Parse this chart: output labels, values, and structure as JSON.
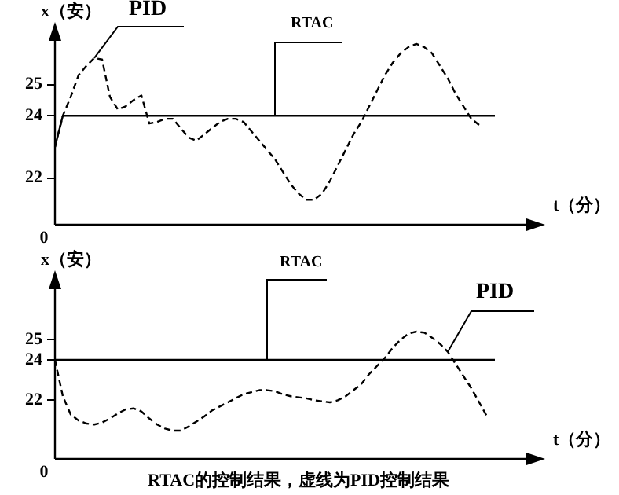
{
  "chart_data": [
    {
      "type": "line",
      "ylabel": "x（安）",
      "xlabel": "t（分）",
      "tick_labels": "y",
      "annotations": [
        "0"
      ],
      "categories": [
        null,
        null,
        null,
        null,
        null,
        null,
        null,
        null,
        null,
        null,
        null,
        null,
        null,
        null,
        null,
        null,
        null,
        null,
        null,
        null,
        null,
        null,
        null,
        null,
        null,
        null,
        null,
        null,
        null,
        null,
        null,
        null,
        null,
        null,
        null,
        null,
        null,
        null,
        null,
        null,
        null,
        null,
        null,
        null,
        null,
        null,
        null,
        null,
        null,
        null,
        null,
        null,
        null,
        null,
        null,
        null,
        null
      ],
      "ylim": [
        20.5,
        26.4
      ],
      "yticks": [
        22,
        24,
        25
      ],
      "series": [
        {
          "name": "PID",
          "color": "#000000",
          "line_style": "dashed",
          "values": [
            23.0,
            24.0,
            24.6,
            25.3,
            25.6,
            25.85,
            25.8,
            24.6,
            24.2,
            24.3,
            24.5,
            24.65,
            23.75,
            23.8,
            23.9,
            23.9,
            23.6,
            23.3,
            23.2,
            23.4,
            23.6,
            23.8,
            23.9,
            23.9,
            23.8,
            23.5,
            23.2,
            22.9,
            22.6,
            22.2,
            21.8,
            21.5,
            21.3,
            21.3,
            21.5,
            21.9,
            22.4,
            22.9,
            23.4,
            23.8,
            24.3,
            24.8,
            25.3,
            25.7,
            26.0,
            26.2,
            26.3,
            26.2,
            26.0,
            25.6,
            25.2,
            24.7,
            24.3,
            23.9,
            23.7,
            null,
            null
          ]
        },
        {
          "name": "RTAC",
          "color": "#000000",
          "line_style": "solid",
          "values": [
            23.0,
            24,
            24,
            24,
            24,
            24,
            24,
            24,
            24,
            24,
            24,
            24,
            24,
            24,
            24,
            24,
            24,
            24,
            24,
            24,
            24,
            24,
            24,
            24,
            24,
            24,
            24,
            24,
            24,
            24,
            24,
            24,
            24,
            24,
            24,
            24,
            24,
            24,
            24,
            24,
            24,
            24,
            24,
            24,
            24,
            24,
            24,
            24,
            24,
            24,
            24,
            24,
            24,
            24,
            24,
            24,
            24
          ]
        }
      ]
    },
    {
      "type": "line",
      "ylabel": "x（安）",
      "xlabel": "t（分）",
      "tick_labels": "y",
      "annotations": [
        "0",
        "RTAC的控制结果，虚线为PID控制结果"
      ],
      "categories": [
        null,
        null,
        null,
        null,
        null,
        null,
        null,
        null,
        null,
        null,
        null,
        null,
        null,
        null,
        null,
        null,
        null,
        null,
        null,
        null,
        null,
        null,
        null,
        null,
        null,
        null,
        null,
        null,
        null,
        null,
        null,
        null,
        null,
        null,
        null,
        null,
        null,
        null,
        null,
        null,
        null,
        null,
        null,
        null,
        null,
        null,
        null,
        null,
        null,
        null,
        null,
        null,
        null,
        null,
        null,
        null,
        null
      ],
      "ylim": [
        19.1,
        27.5
      ],
      "yticks": [
        22,
        24,
        25
      ],
      "series": [
        {
          "name": "PID",
          "color": "#000000",
          "line_style": "dashed",
          "values": [
            24.0,
            22.2,
            21.3,
            21.0,
            20.85,
            20.8,
            20.9,
            21.1,
            21.35,
            21.55,
            21.6,
            21.45,
            21.1,
            20.8,
            20.6,
            20.5,
            20.5,
            20.7,
            20.95,
            21.2,
            21.5,
            21.7,
            21.9,
            22.1,
            22.3,
            22.4,
            22.5,
            22.5,
            22.45,
            22.3,
            22.2,
            22.15,
            22.1,
            22.0,
            21.95,
            21.9,
            22.0,
            22.2,
            22.5,
            22.8,
            23.3,
            23.7,
            24.1,
            24.6,
            25.0,
            25.3,
            25.4,
            25.35,
            25.1,
            24.8,
            24.4,
            23.8,
            23.2,
            22.6,
            21.9,
            21.2,
            null
          ]
        },
        {
          "name": "RTAC",
          "color": "#000000",
          "line_style": "solid",
          "values": [
            24,
            24,
            24,
            24,
            24,
            24,
            24,
            24,
            24,
            24,
            24,
            24,
            24,
            24,
            24,
            24,
            24,
            24,
            24,
            24,
            24,
            24,
            24,
            24,
            24,
            24,
            24,
            24,
            24,
            24,
            24,
            24,
            24,
            24,
            24,
            24,
            24,
            24,
            24,
            24,
            24,
            24,
            24,
            24,
            24,
            24,
            24,
            24,
            24,
            24,
            24,
            24,
            24,
            24,
            24,
            24,
            24
          ]
        }
      ]
    }
  ]
}
